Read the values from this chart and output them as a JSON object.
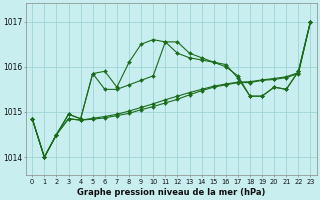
{
  "title": "Graphe pression niveau de la mer (hPa)",
  "bg_color": "#c8eef0",
  "grid_color": "#9dd4d8",
  "line_color": "#1a6b1a",
  "x_ticks": [
    0,
    1,
    2,
    3,
    4,
    5,
    6,
    7,
    8,
    9,
    10,
    11,
    12,
    13,
    14,
    15,
    16,
    17,
    18,
    19,
    20,
    21,
    22,
    23
  ],
  "ylim": [
    1013.6,
    1017.4
  ],
  "yticks": [
    1014,
    1015,
    1016,
    1017
  ],
  "line1": [
    1014.85,
    1014.0,
    1014.5,
    1014.95,
    1014.85,
    1015.85,
    1015.9,
    1015.55,
    1016.1,
    1016.5,
    1016.6,
    1016.55,
    1016.3,
    1016.2,
    1016.15,
    1016.1,
    1016.0,
    1015.8,
    1015.35,
    1015.35,
    1015.55,
    1015.5,
    1015.9,
    1017.0
  ],
  "line2": [
    1014.85,
    1014.0,
    1014.5,
    1014.95,
    1014.85,
    1015.85,
    1015.5,
    1015.5,
    1015.6,
    1015.7,
    1015.8,
    1016.55,
    1016.55,
    1016.3,
    1016.2,
    1016.1,
    1016.05,
    1015.75,
    1015.35,
    1015.35,
    1015.55,
    1015.5,
    1015.9,
    1017.0
  ],
  "line3": [
    1014.85,
    1014.0,
    1014.5,
    1014.85,
    1014.82,
    1014.84,
    1014.87,
    1014.92,
    1014.97,
    1015.05,
    1015.12,
    1015.2,
    1015.28,
    1015.38,
    1015.47,
    1015.55,
    1015.6,
    1015.65,
    1015.65,
    1015.7,
    1015.72,
    1015.76,
    1015.85,
    1017.0
  ],
  "line4": [
    1014.85,
    1014.0,
    1014.5,
    1014.85,
    1014.82,
    1014.86,
    1014.9,
    1014.95,
    1015.02,
    1015.1,
    1015.18,
    1015.27,
    1015.35,
    1015.43,
    1015.5,
    1015.57,
    1015.62,
    1015.66,
    1015.67,
    1015.71,
    1015.74,
    1015.78,
    1015.87,
    1017.0
  ],
  "xlabel_fontsize": 6.0,
  "xtick_fontsize": 4.8,
  "ytick_fontsize": 5.5
}
